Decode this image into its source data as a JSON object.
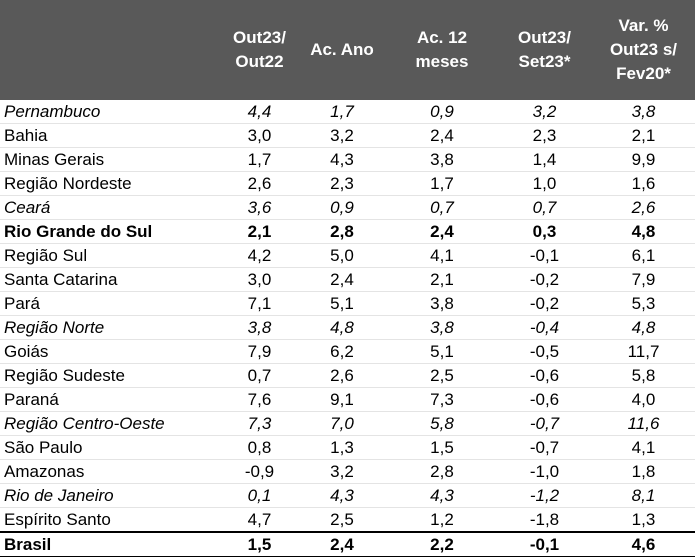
{
  "table": {
    "columns": [
      "",
      "Out23/\nOut22",
      "Ac. Ano",
      "Ac. 12\nmeses",
      "Out23/\nSet23*",
      "Var. %\nOut23 s/\nFev20*"
    ],
    "rows": [
      [
        "Pernambuco",
        "4,4",
        "1,7",
        "0,9",
        "3,2",
        "3,8"
      ],
      [
        "Bahia",
        "3,0",
        "3,2",
        "2,4",
        "2,3",
        "2,1"
      ],
      [
        "Minas Gerais",
        "1,7",
        "4,3",
        "3,8",
        "1,4",
        "9,9"
      ],
      [
        "Região Nordeste",
        "2,6",
        "2,3",
        "1,7",
        "1,0",
        "1,6"
      ],
      [
        "Ceará",
        "3,6",
        "0,9",
        "0,7",
        "0,7",
        "2,6"
      ],
      [
        "Rio Grande do Sul",
        "2,1",
        "2,8",
        "2,4",
        "0,3",
        "4,8"
      ],
      [
        "Região Sul",
        "4,2",
        "5,0",
        "4,1",
        "-0,1",
        "6,1"
      ],
      [
        "Santa Catarina",
        "3,0",
        "2,4",
        "2,1",
        "-0,2",
        "7,9"
      ],
      [
        "Pará",
        "7,1",
        "5,1",
        "3,8",
        "-0,2",
        "5,3"
      ],
      [
        "Região Norte",
        "3,8",
        "4,8",
        "3,8",
        "-0,4",
        "4,8"
      ],
      [
        "Goiás",
        "7,9",
        "6,2",
        "5,1",
        "-0,5",
        "11,7"
      ],
      [
        "Região Sudeste",
        "0,7",
        "2,6",
        "2,5",
        "-0,6",
        "5,8"
      ],
      [
        "Paraná",
        "7,6",
        "9,1",
        "7,3",
        "-0,6",
        "4,0"
      ],
      [
        "Região Centro-Oeste",
        "7,3",
        "7,0",
        "5,8",
        "-0,7",
        "11,6"
      ],
      [
        "São Paulo",
        "0,8",
        "1,3",
        "1,5",
        "-0,7",
        "4,1"
      ],
      [
        "Amazonas",
        "-0,9",
        "3,2",
        "2,8",
        "-1,0",
        "1,8"
      ],
      [
        "Rio de Janeiro",
        "0,1",
        "4,3",
        "4,3",
        "-1,2",
        "8,1"
      ],
      [
        "Espírito Santo",
        "4,7",
        "2,5",
        "1,2",
        "-1,8",
        "1,3"
      ],
      [
        "Brasil",
        "1,5",
        "2,4",
        "2,2",
        "-0,1",
        "4,6"
      ]
    ]
  }
}
